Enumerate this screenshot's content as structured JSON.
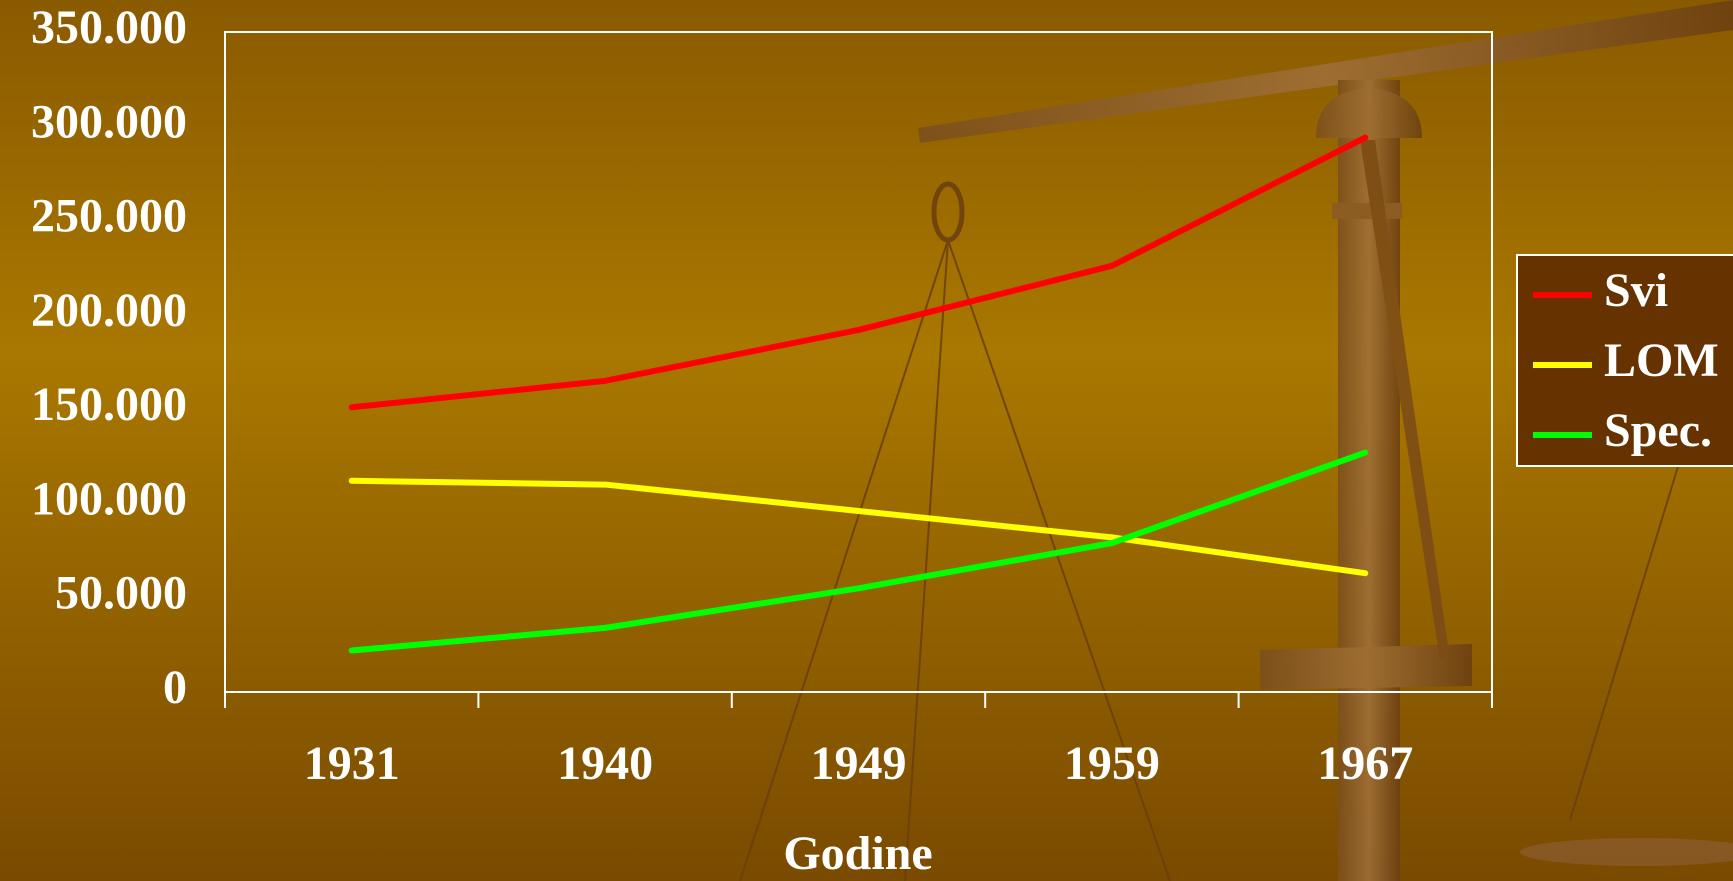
{
  "chart_data": {
    "type": "line",
    "x_label": "Godine",
    "categories": [
      "1931",
      "1940",
      "1949",
      "1959",
      "1967"
    ],
    "series": [
      {
        "name": "Svi",
        "color": "#ff0000",
        "values": [
          151000,
          165000,
          192000,
          226000,
          294000
        ]
      },
      {
        "name": "LOM",
        "color": "#ffff00",
        "values": [
          112000,
          110000,
          96000,
          82000,
          63000
        ]
      },
      {
        "name": "Spec.",
        "color": "#00ff00",
        "values": [
          22000,
          34000,
          55000,
          79000,
          127000
        ]
      }
    ],
    "ylim": [
      0,
      350000
    ],
    "yticks": [
      0,
      {
        "value": 50000,
        "label": "50.000"
      },
      {
        "value": 100000,
        "label": "100.000"
      },
      {
        "value": 150000,
        "label": "150.000"
      },
      {
        "value": 200000,
        "label": "200.000"
      },
      {
        "value": 250000,
        "label": "250.000"
      },
      {
        "value": 300000,
        "label": "300.000"
      },
      {
        "value": 350000,
        "label": "350.000"
      }
    ],
    "grid": false,
    "legend": "right"
  }
}
